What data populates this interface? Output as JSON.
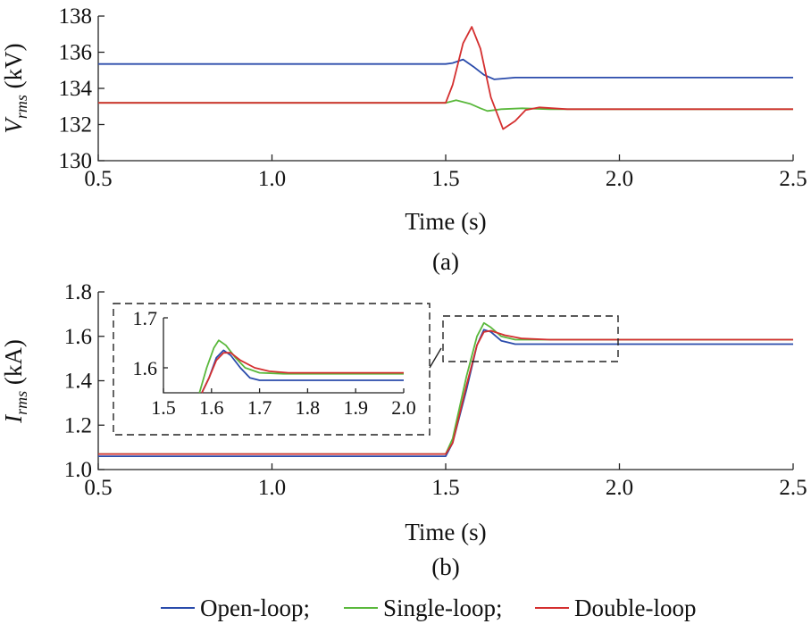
{
  "chart_data": [
    {
      "type": "line",
      "panel_label": "(a)",
      "xlabel": "Time (s)",
      "ylabel_main": "V",
      "ylabel_sub": "rms",
      "ylabel_unit": " (kV)",
      "xlim": [
        0.5,
        2.5
      ],
      "ylim": [
        130,
        138
      ],
      "xticks": [
        "0.5",
        "1.0",
        "1.5",
        "2.0",
        "2.5"
      ],
      "yticks": [
        "130",
        "132",
        "134",
        "136",
        "138"
      ],
      "series": [
        {
          "name": "Open-loop",
          "color": "#2a4bab",
          "x": [
            0.5,
            1.5,
            1.52,
            1.55,
            1.58,
            1.61,
            1.64,
            1.7,
            1.8,
            2.5
          ],
          "y": [
            135.35,
            135.35,
            135.4,
            135.6,
            135.2,
            134.75,
            134.5,
            134.6,
            134.6,
            134.6
          ]
        },
        {
          "name": "Single-loop",
          "color": "#5ab83c",
          "x": [
            0.5,
            1.5,
            1.53,
            1.57,
            1.6,
            1.62,
            1.66,
            1.72,
            1.8,
            2.5
          ],
          "y": [
            133.2,
            133.2,
            133.35,
            133.15,
            132.9,
            132.75,
            132.85,
            132.9,
            132.85,
            132.85
          ]
        },
        {
          "name": "Double-loop",
          "color": "#d42f2f",
          "x": [
            0.5,
            1.5,
            1.52,
            1.55,
            1.575,
            1.6,
            1.63,
            1.665,
            1.7,
            1.73,
            1.77,
            1.85,
            2.5
          ],
          "y": [
            133.2,
            133.2,
            134.2,
            136.5,
            137.4,
            136.2,
            133.5,
            131.75,
            132.2,
            132.8,
            132.95,
            132.85,
            132.85
          ]
        }
      ]
    },
    {
      "type": "line",
      "panel_label": "(b)",
      "xlabel": "Time (s)",
      "ylabel_main": "I",
      "ylabel_sub": "rms",
      "ylabel_unit": " (kA)",
      "xlim": [
        0.5,
        2.5
      ],
      "ylim": [
        1.0,
        1.8
      ],
      "xticks": [
        "0.5",
        "1.0",
        "1.5",
        "2.0",
        "2.5"
      ],
      "yticks": [
        "1.0",
        "1.2",
        "1.4",
        "1.6",
        "1.8"
      ],
      "series": [
        {
          "name": "Open-loop",
          "color": "#2a4bab",
          "x": [
            0.5,
            1.5,
            1.52,
            1.56,
            1.59,
            1.61,
            1.63,
            1.66,
            1.7,
            1.8,
            2.5
          ],
          "y": [
            1.06,
            1.06,
            1.12,
            1.36,
            1.56,
            1.63,
            1.62,
            1.58,
            1.565,
            1.565,
            1.565
          ]
        },
        {
          "name": "Single-loop",
          "color": "#5ab83c",
          "x": [
            0.5,
            1.5,
            1.52,
            1.56,
            1.59,
            1.61,
            1.63,
            1.66,
            1.7,
            1.8,
            2.5
          ],
          "y": [
            1.07,
            1.07,
            1.14,
            1.42,
            1.6,
            1.66,
            1.64,
            1.6,
            1.585,
            1.585,
            1.585
          ]
        },
        {
          "name": "Double-loop",
          "color": "#d42f2f",
          "x": [
            0.5,
            1.5,
            1.52,
            1.56,
            1.59,
            1.61,
            1.63,
            1.67,
            1.72,
            1.8,
            2.5
          ],
          "y": [
            1.07,
            1.07,
            1.12,
            1.38,
            1.56,
            1.62,
            1.625,
            1.605,
            1.59,
            1.585,
            1.585
          ]
        }
      ],
      "inset": {
        "xlim": [
          1.5,
          2.0
        ],
        "ylim": [
          1.55,
          1.7
        ],
        "xticks": [
          "1.5",
          "1.6",
          "1.7",
          "1.8",
          "1.9",
          "2.0"
        ],
        "yticks": [
          "1.6",
          "1.7"
        ],
        "series": [
          {
            "name": "Open-loop",
            "color": "#2a4bab",
            "x": [
              1.58,
              1.595,
              1.61,
              1.625,
              1.64,
              1.66,
              1.68,
              1.7,
              1.75,
              2.0
            ],
            "y": [
              1.53,
              1.58,
              1.62,
              1.635,
              1.625,
              1.6,
              1.58,
              1.575,
              1.575,
              1.575
            ]
          },
          {
            "name": "Single-loop",
            "color": "#5ab83c",
            "x": [
              1.575,
              1.59,
              1.605,
              1.615,
              1.63,
              1.65,
              1.67,
              1.7,
              1.75,
              2.0
            ],
            "y": [
              1.53,
              1.6,
              1.64,
              1.655,
              1.645,
              1.62,
              1.6,
              1.59,
              1.588,
              1.588
            ]
          },
          {
            "name": "Double-loop",
            "color": "#d42f2f",
            "x": [
              1.58,
              1.595,
              1.61,
              1.625,
              1.64,
              1.66,
              1.69,
              1.72,
              1.76,
              2.0
            ],
            "y": [
              1.53,
              1.58,
              1.615,
              1.63,
              1.63,
              1.615,
              1.6,
              1.593,
              1.59,
              1.59
            ]
          }
        ]
      }
    }
  ],
  "legend": {
    "position": "bottom",
    "items": [
      "Open-loop;",
      "Single-loop;",
      "Double-loop"
    ],
    "colors": [
      "#2a4bab",
      "#5ab83c",
      "#d42f2f"
    ]
  }
}
